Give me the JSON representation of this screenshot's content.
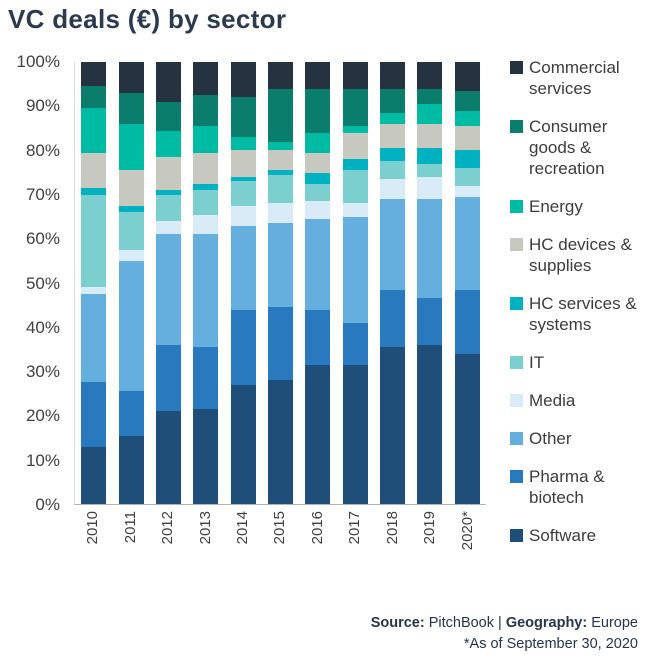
{
  "title": "VC deals (€) by sector",
  "footer": {
    "source_label": "Source:",
    "source_value": " PitchBook ",
    "separator": "| ",
    "geography_label": "Geography:",
    "geography_value": " Europe",
    "note": "*As of September 30, 2020"
  },
  "chart_data": {
    "type": "bar",
    "stacked": true,
    "unit": "percent",
    "title": "VC deals (€) by sector",
    "ylim": [
      0,
      100
    ],
    "y_axis_ticks": [
      "100%",
      "90%",
      "80%",
      "70%",
      "60%",
      "50%",
      "40%",
      "30%",
      "20%",
      "10%",
      "0%"
    ],
    "grid": false,
    "legend_position": "right",
    "categories": [
      "2010",
      "2011",
      "2012",
      "2013",
      "2014",
      "2015",
      "2016",
      "2017",
      "2018",
      "2019",
      "2020*"
    ],
    "series_note": "series listed bottom-to-top of stack; legend shows reverse order",
    "series": [
      {
        "name": "Software",
        "color": "#1f4e79",
        "values": [
          13,
          15.5,
          21,
          21.5,
          27,
          28,
          31.5,
          31.5,
          35.5,
          36,
          34
        ]
      },
      {
        "name": "Pharma & biotech",
        "color": "#2879bd",
        "values": [
          14.5,
          10,
          15,
          14,
          17,
          16.5,
          12.5,
          9.5,
          13,
          10.5,
          14.5
        ]
      },
      {
        "name": "Other",
        "color": "#64afdd",
        "values": [
          20,
          29.5,
          25,
          25.5,
          19,
          19,
          20.5,
          24,
          20.5,
          22.5,
          21
        ]
      },
      {
        "name": "Media",
        "color": "#d9ebf7",
        "values": [
          1.5,
          2.5,
          3,
          4.5,
          4.5,
          4.5,
          4,
          3,
          4.5,
          5,
          2.5
        ]
      },
      {
        "name": "IT",
        "color": "#7bd0cf",
        "values": [
          21,
          8.5,
          6,
          5.5,
          5.5,
          6.5,
          4,
          7.5,
          4,
          3,
          4
        ]
      },
      {
        "name": "HC services & systems",
        "color": "#00b1c1",
        "values": [
          1.5,
          1.5,
          1,
          1.5,
          1,
          1,
          2.5,
          2.5,
          3,
          3.5,
          4
        ]
      },
      {
        "name": "HC devices & supplies",
        "color": "#c7c8c0",
        "values": [
          8,
          8,
          7.5,
          7,
          6,
          4.5,
          4.5,
          6,
          5.5,
          5.5,
          5.5
        ]
      },
      {
        "name": "Energy",
        "color": "#00bba4",
        "values": [
          10,
          10.5,
          6,
          6,
          3,
          2,
          4.5,
          1.5,
          2.5,
          4.5,
          3.5
        ]
      },
      {
        "name": "Consumer goods & recreation",
        "color": "#0a7d6c",
        "values": [
          5,
          7,
          6.5,
          7,
          9,
          12,
          10,
          8.5,
          5.5,
          3.5,
          4.5
        ]
      },
      {
        "name": "Commercial services",
        "color": "#253240",
        "values": [
          5.5,
          7,
          9,
          7.5,
          8,
          6,
          6,
          6,
          6,
          6,
          6.5
        ]
      }
    ],
    "legend_labels_top_to_bottom": [
      "Commercial services",
      "Consumer goods & recreation",
      "Energy",
      "HC devices & supplies",
      "HC services & systems",
      "IT",
      "Media",
      "Other",
      "Pharma & biotech",
      "Software"
    ]
  }
}
